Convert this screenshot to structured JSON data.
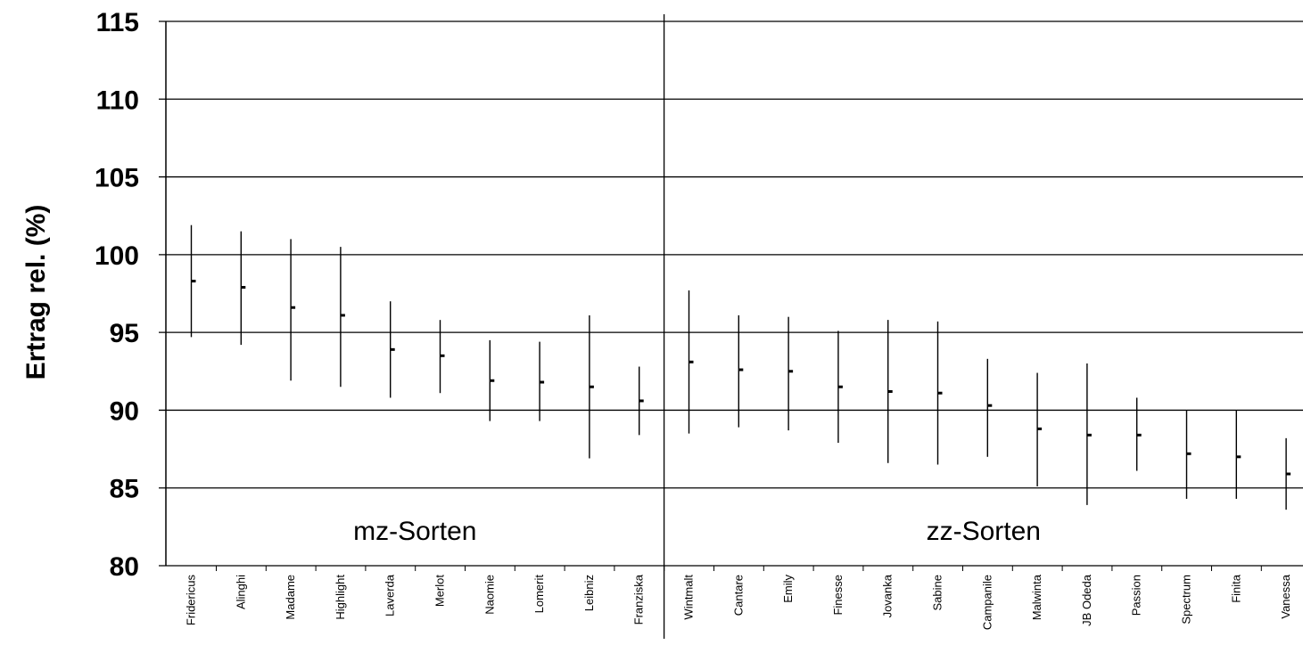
{
  "chart_data": {
    "type": "error-bar",
    "ylabel": "Ertrag rel. (%)",
    "ylim": [
      80,
      115
    ],
    "yticks": [
      "80",
      "85",
      "90",
      "95",
      "100",
      "105",
      "110",
      "115"
    ],
    "grid": true,
    "groups": [
      {
        "label": "mz-Sorten",
        "count": 10
      },
      {
        "label": "zz-Sorten",
        "count": 13
      }
    ],
    "categories": [
      "Fridericus",
      "Alinghi",
      "Madame",
      "Highlight",
      "Laverda",
      "Merlot",
      "Naomie",
      "Lomerit",
      "Leibniz",
      "Franziska",
      "Wintmalt",
      "Cantare",
      "Emily",
      "Finesse",
      "Jovanka",
      "Sabine",
      "Campanile",
      "Malwinta",
      "JB Odeda",
      "Passion",
      "Spectrum",
      "Finita",
      "Vanessa"
    ],
    "mean": [
      98.3,
      97.9,
      96.6,
      96.1,
      93.9,
      93.5,
      91.9,
      91.8,
      91.5,
      90.6,
      93.1,
      92.6,
      92.5,
      91.5,
      91.2,
      91.1,
      90.3,
      88.8,
      88.4,
      88.4,
      87.2,
      87.0,
      85.9
    ],
    "upper": [
      101.9,
      101.5,
      101.0,
      100.5,
      97.0,
      95.8,
      94.5,
      94.4,
      96.1,
      92.8,
      97.7,
      96.1,
      96.0,
      95.1,
      95.8,
      95.7,
      93.3,
      92.4,
      93.0,
      90.8,
      90.0,
      90.0,
      88.2
    ],
    "lower": [
      94.7,
      94.2,
      91.9,
      91.5,
      90.8,
      91.1,
      89.3,
      89.3,
      86.9,
      88.4,
      88.5,
      88.9,
      88.7,
      87.9,
      86.6,
      86.5,
      87.0,
      85.1,
      83.9,
      86.1,
      84.3,
      84.3,
      83.6
    ]
  }
}
